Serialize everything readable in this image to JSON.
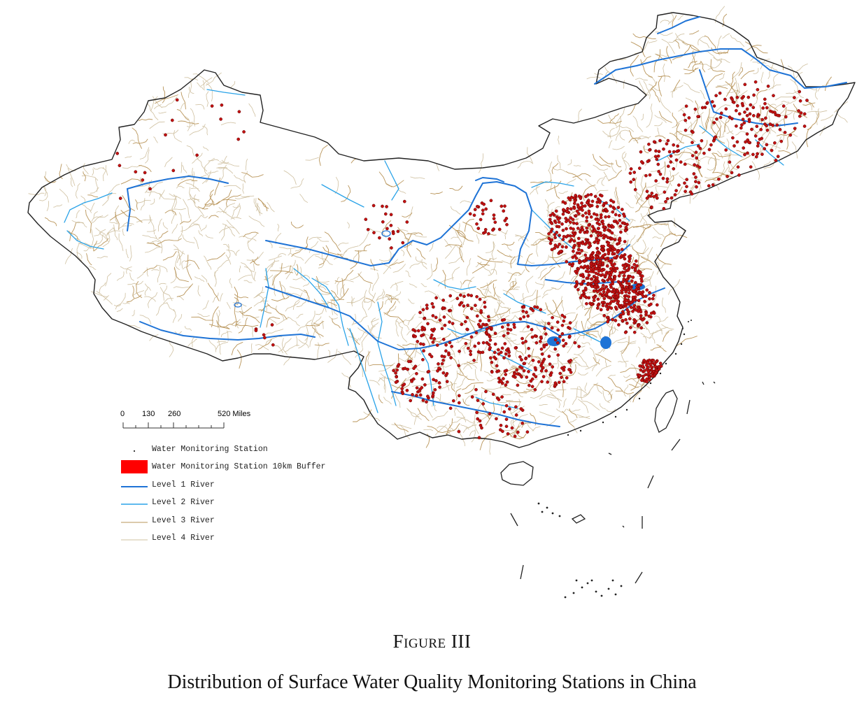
{
  "figure": {
    "label": "Figure III",
    "caption": "Distribution of Surface Water Quality Monitoring Stations in China"
  },
  "scale_bar": {
    "ticks": [
      "0",
      "130",
      "260",
      "520 Miles"
    ]
  },
  "legend": {
    "items": [
      {
        "key": "station",
        "label": "Water Monitoring Station",
        "color": "#000000"
      },
      {
        "key": "buffer",
        "label": "Water Monitoring Station 10km Buffer",
        "color": "#ff0000"
      },
      {
        "key": "river1",
        "label": "Level 1 River",
        "color": "#1e73d6"
      },
      {
        "key": "river2",
        "label": "Level 2 River",
        "color": "#2aa3e8"
      },
      {
        "key": "river3",
        "label": "Level 3 River",
        "color": "#b9955a"
      },
      {
        "key": "river4",
        "label": "Level 4 River",
        "color": "#cfc0a0"
      }
    ]
  },
  "colors": {
    "border": "#222222",
    "river_level1": "#1e73d6",
    "river_level2": "#2aa3e8",
    "river_level3": "#b9955a",
    "river_level4": "#cfc0a0",
    "station": "#c41212"
  }
}
